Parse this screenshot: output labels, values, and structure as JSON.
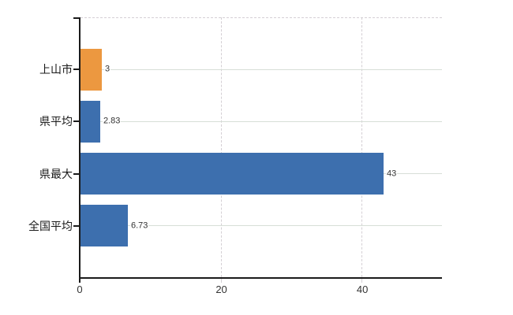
{
  "chart_data": {
    "type": "bar",
    "orientation": "horizontal",
    "title": "",
    "xlabel": "",
    "ylabel": "",
    "categories": [
      "上山市",
      "県平均",
      "県最大",
      "全国平均"
    ],
    "values": [
      3,
      2.83,
      43,
      6.73
    ],
    "value_labels": [
      "3",
      "2.83",
      "43",
      "6.73"
    ],
    "bar_colors": [
      "#ec9840",
      "#3d6fae",
      "#3d6fae",
      "#3d6fae"
    ],
    "x_ticks": [
      0,
      20,
      40
    ],
    "x_tick_labels": [
      "0",
      "20",
      "40"
    ],
    "xlim": [
      0,
      51.3
    ],
    "legend": "none",
    "grid": {
      "horizontal": "solid",
      "vertical": "dashed",
      "top_boundary": "dashed"
    },
    "colors": {
      "axis": "#1a1a1a",
      "grid_horizontal": "#d7ded7",
      "grid_vertical": "#d4cfd4",
      "category_label": "#1a1a1a",
      "value_label": "#333333",
      "tick_label": "#333333",
      "background": "#ffffff"
    }
  }
}
